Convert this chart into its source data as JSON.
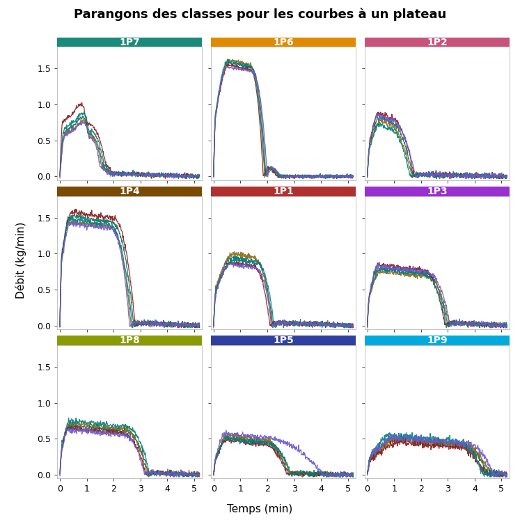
{
  "title": "Parangons des classes pour les courbes à un plateau",
  "xlabel": "Temps (min)",
  "ylabel": "Débit (kg/min)",
  "subplots": [
    {
      "label": "1P7",
      "color": "#1a8a7a"
    },
    {
      "label": "1P6",
      "color": "#e08a00"
    },
    {
      "label": "1P2",
      "color": "#c9527a"
    },
    {
      "label": "1P4",
      "color": "#7a4a00"
    },
    {
      "label": "1P1",
      "color": "#b03030"
    },
    {
      "label": "1P3",
      "color": "#9b30d0"
    },
    {
      "label": "1P8",
      "color": "#8a9a00"
    },
    {
      "label": "1P5",
      "color": "#3040a0"
    },
    {
      "label": "1P9",
      "color": "#00aadd"
    }
  ],
  "line_colors": [
    "#2e7d6e",
    "#8b4513",
    "#8b0000",
    "#008b8b",
    "#483d8b",
    "#a0522d"
  ],
  "ylim": [
    -0.05,
    1.8
  ],
  "xlim": [
    -0.1,
    5.3
  ],
  "yticks": [
    0.0,
    0.5,
    1.0,
    1.5
  ],
  "xticks": [
    0,
    1,
    2,
    3,
    4,
    5
  ],
  "title_fontsize": 13,
  "label_fontsize": 11,
  "tick_fontsize": 9
}
